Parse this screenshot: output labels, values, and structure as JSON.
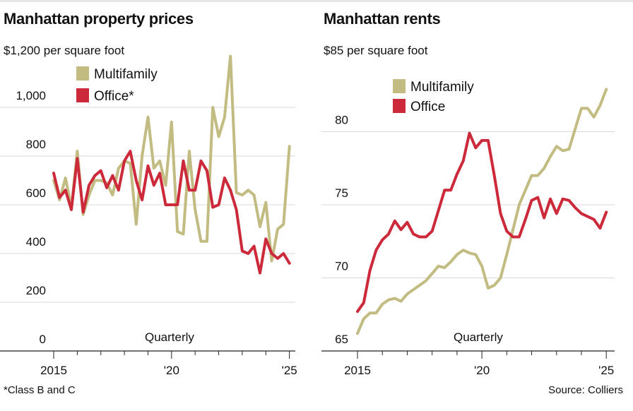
{
  "colors": {
    "multifamily": "#c2bc82",
    "office": "#cc2a3a",
    "grid": "#d8d8d8",
    "axis": "#222222"
  },
  "chart_data": [
    {
      "type": "line",
      "title": "Manhattan property prices",
      "unit_label": "per square foot",
      "top_tick_label": "$1,200",
      "annotation": "Quarterly",
      "ylim": [
        0,
        1200
      ],
      "y_ticks": [
        0,
        200,
        400,
        600,
        800,
        1000,
        1200
      ],
      "y_tick_labels": [
        "0",
        "200",
        "400",
        "600",
        "800",
        "1,000",
        "$1,200"
      ],
      "xlim": [
        2015,
        2025.25
      ],
      "x_ticks": [
        2015,
        2020,
        2025
      ],
      "x_tick_labels": [
        "2015",
        "'20",
        "'25"
      ],
      "grid": true,
      "legend_placement": "top-left",
      "footnote": "*Class B and C",
      "series": [
        {
          "name": "Multifamily",
          "color_key": "multifamily",
          "x": [
            2015,
            2015.25,
            2015.5,
            2015.75,
            2016,
            2016.25,
            2016.5,
            2016.75,
            2017,
            2017.25,
            2017.5,
            2017.75,
            2018,
            2018.25,
            2018.5,
            2018.75,
            2019,
            2019.25,
            2019.5,
            2019.75,
            2020,
            2020.25,
            2020.5,
            2020.75,
            2021,
            2021.25,
            2021.5,
            2021.75,
            2022,
            2022.25,
            2022.5,
            2022.75,
            2023,
            2023.25,
            2023.5,
            2023.75,
            2024,
            2024.25,
            2024.5,
            2024.75,
            2025
          ],
          "values": [
            700,
            620,
            710,
            590,
            820,
            560,
            640,
            700,
            700,
            690,
            640,
            750,
            780,
            770,
            520,
            800,
            960,
            750,
            780,
            680,
            940,
            490,
            480,
            820,
            580,
            450,
            450,
            1000,
            880,
            960,
            1210,
            650,
            640,
            660,
            640,
            510,
            610,
            370,
            500,
            520,
            840
          ]
        },
        {
          "name": "Office*",
          "color_key": "office",
          "x": [
            2015,
            2015.25,
            2015.5,
            2015.75,
            2016,
            2016.25,
            2016.5,
            2016.75,
            2017,
            2017.25,
            2017.5,
            2017.75,
            2018,
            2018.25,
            2018.5,
            2018.75,
            2019,
            2019.25,
            2019.5,
            2019.75,
            2020,
            2020.25,
            2020.5,
            2020.75,
            2021,
            2021.25,
            2021.5,
            2021.75,
            2022,
            2022.25,
            2022.5,
            2022.75,
            2023,
            2023.25,
            2023.5,
            2023.75,
            2024,
            2024.25,
            2024.5,
            2024.75,
            2025
          ],
          "values": [
            730,
            630,
            660,
            580,
            790,
            570,
            680,
            720,
            740,
            670,
            720,
            660,
            780,
            820,
            700,
            620,
            760,
            680,
            730,
            600,
            600,
            600,
            780,
            660,
            660,
            780,
            740,
            590,
            600,
            710,
            660,
            580,
            410,
            400,
            430,
            320,
            460,
            400,
            380,
            400,
            360
          ]
        }
      ]
    },
    {
      "type": "line",
      "title": "Manhattan rents",
      "unit_label": "per square foot",
      "top_tick_label": "$85",
      "annotation": "Quarterly",
      "ylim": [
        65,
        85
      ],
      "y_ticks": [
        65,
        70,
        75,
        80,
        85
      ],
      "y_tick_labels": [
        "65",
        "70",
        "75",
        "80",
        "$85"
      ],
      "xlim": [
        2015,
        2025.25
      ],
      "x_ticks": [
        2015,
        2020,
        2025
      ],
      "x_tick_labels": [
        "2015",
        "'20",
        "'25"
      ],
      "grid": true,
      "legend_placement": "top-center",
      "source": "Source: Colliers",
      "series": [
        {
          "name": "Multifamily",
          "color_key": "multifamily",
          "x": [
            2015,
            2015.25,
            2015.5,
            2015.75,
            2016,
            2016.25,
            2016.5,
            2016.75,
            2017,
            2017.25,
            2017.5,
            2017.75,
            2018,
            2018.25,
            2018.5,
            2018.75,
            2019,
            2019.25,
            2019.5,
            2019.75,
            2020,
            2020.25,
            2020.5,
            2020.75,
            2021,
            2021.25,
            2021.5,
            2021.75,
            2022,
            2022.25,
            2022.5,
            2022.75,
            2023,
            2023.25,
            2023.5,
            2023.75,
            2024,
            2024.25,
            2024.5,
            2024.75,
            2025
          ],
          "values": [
            66.2,
            67.2,
            67.6,
            67.6,
            68.2,
            68.5,
            68.6,
            68.4,
            68.9,
            69.2,
            69.5,
            69.8,
            70.3,
            70.8,
            70.7,
            71.1,
            71.6,
            71.9,
            71.7,
            71.6,
            70.8,
            69.3,
            69.5,
            70.0,
            71.6,
            73.3,
            75.0,
            76.0,
            77.0,
            77.0,
            77.5,
            78.3,
            79.0,
            78.7,
            78.8,
            80.2,
            81.6,
            81.6,
            81.0,
            81.8,
            82.9
          ]
        },
        {
          "name": "Office",
          "color_key": "office",
          "x": [
            2015,
            2015.25,
            2015.5,
            2015.75,
            2016,
            2016.25,
            2016.5,
            2016.75,
            2017,
            2017.25,
            2017.5,
            2017.75,
            2018,
            2018.25,
            2018.5,
            2018.75,
            2019,
            2019.25,
            2019.5,
            2019.75,
            2020,
            2020.25,
            2020.5,
            2020.75,
            2021,
            2021.25,
            2021.5,
            2021.75,
            2022,
            2022.25,
            2022.5,
            2022.75,
            2023,
            2023.25,
            2023.5,
            2023.75,
            2024,
            2024.25,
            2024.5,
            2024.75,
            2025
          ],
          "values": [
            67.7,
            68.3,
            70.5,
            71.9,
            72.6,
            73.0,
            73.9,
            73.3,
            73.8,
            73.0,
            72.8,
            72.8,
            73.2,
            74.6,
            76.0,
            76.0,
            77.1,
            78.0,
            79.9,
            78.9,
            79.4,
            79.4,
            77.0,
            74.4,
            73.2,
            72.8,
            72.8,
            74.0,
            75.3,
            75.5,
            74.1,
            75.4,
            74.4,
            75.4,
            75.3,
            74.8,
            74.4,
            74.2,
            74.0,
            73.4,
            74.5
          ]
        }
      ]
    }
  ]
}
